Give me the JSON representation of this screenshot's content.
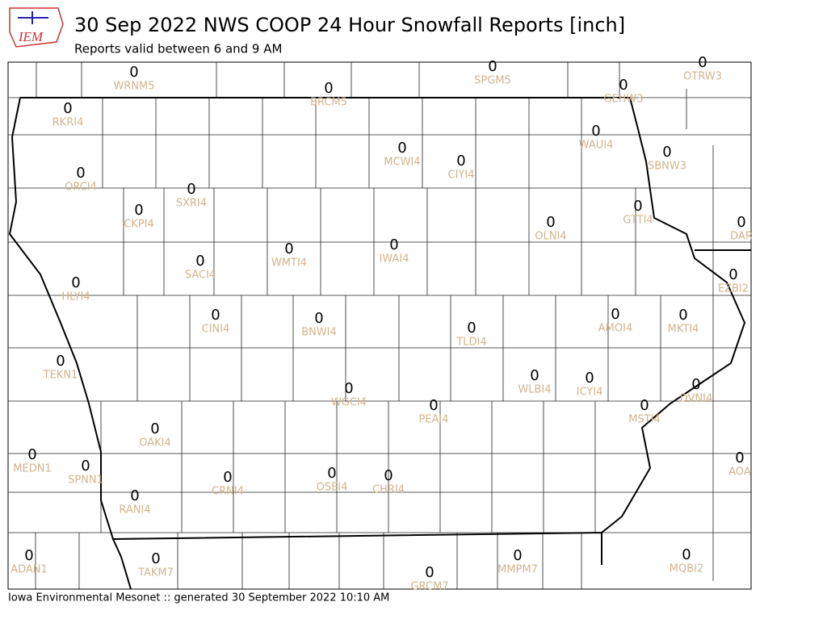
{
  "header": {
    "title": "30 Sep 2022 NWS COOP 24 Hour Snowfall Reports [inch]",
    "subtitle": "Reports valid between 6 and 9 AM",
    "logo": "IEM"
  },
  "stations": [
    {
      "id": "WRNM5",
      "value": 0
    },
    {
      "id": "BRCM5",
      "value": 0
    },
    {
      "id": "SPGM5",
      "value": 0
    },
    {
      "id": "OTRW3",
      "value": 0
    },
    {
      "id": "GEHW3",
      "value": 0
    },
    {
      "id": "RKRI4",
      "value": 0
    },
    {
      "id": "MCWI4",
      "value": 0
    },
    {
      "id": "CIYI4",
      "value": 0
    },
    {
      "id": "WAUI4",
      "value": 0
    },
    {
      "id": "SBNW3",
      "value": 0
    },
    {
      "id": "ORCI4",
      "value": 0
    },
    {
      "id": "SXRI4",
      "value": 0
    },
    {
      "id": "CKPI4",
      "value": 0
    },
    {
      "id": "GTTI4",
      "value": 0
    },
    {
      "id": "OLNI4",
      "value": 0
    },
    {
      "id": "DAR",
      "value": 0
    },
    {
      "id": "WMTI4",
      "value": 0
    },
    {
      "id": "IWAI4",
      "value": 0
    },
    {
      "id": "SACI4",
      "value": 0
    },
    {
      "id": "EZBI2",
      "value": 0
    },
    {
      "id": "HLYI4",
      "value": 0
    },
    {
      "id": "CINI4",
      "value": 0
    },
    {
      "id": "BNWI4",
      "value": 0
    },
    {
      "id": "TLDI4",
      "value": 0
    },
    {
      "id": "AMOI4",
      "value": 0
    },
    {
      "id": "MKTI4",
      "value": 0
    },
    {
      "id": "TEKN1",
      "value": 0
    },
    {
      "id": "WGCI4",
      "value": 0
    },
    {
      "id": "PEAI4",
      "value": 0
    },
    {
      "id": "WLBI4",
      "value": 0
    },
    {
      "id": "ICYI4",
      "value": 0
    },
    {
      "id": "DVNI4",
      "value": 0
    },
    {
      "id": "MSTI4",
      "value": 0
    },
    {
      "id": "OAKI4",
      "value": 0
    },
    {
      "id": "MEDN1",
      "value": 0
    },
    {
      "id": "SPNN1",
      "value": 0
    },
    {
      "id": "AOA",
      "value": 0
    },
    {
      "id": "CRNI4",
      "value": 0
    },
    {
      "id": "OSEI4",
      "value": 0
    },
    {
      "id": "CHRI4",
      "value": 0
    },
    {
      "id": "RANI4",
      "value": 0
    },
    {
      "id": "ADAN1",
      "value": 0
    },
    {
      "id": "TAKM7",
      "value": 0
    },
    {
      "id": "MMPM7",
      "value": 0
    },
    {
      "id": "MQBI2",
      "value": 0
    },
    {
      "id": "GRCM7",
      "value": 0
    }
  ],
  "footer": "Iowa Environmental Mesonet :: generated 30 September 2022 10:10 AM"
}
